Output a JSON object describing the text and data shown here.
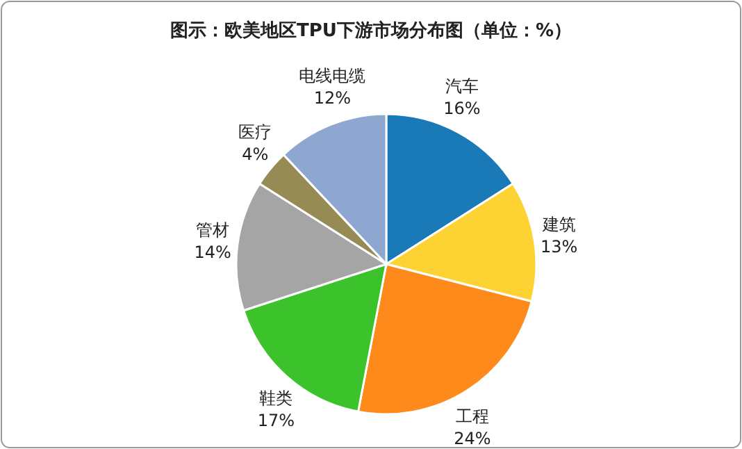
{
  "chart_data": {
    "type": "pie",
    "title": "图示：欧美地区TPU下游市场分布图（单位：%）",
    "categories": [
      "汽车",
      "建筑",
      "工程",
      "鞋类",
      "管材",
      "医疗",
      "电线电缆"
    ],
    "values": [
      16,
      13,
      24,
      17,
      14,
      4,
      12
    ],
    "value_labels": [
      "16%",
      "13%",
      "24%",
      "17%",
      "14%",
      "4%",
      "12%"
    ],
    "colors": [
      "#1a7ab8",
      "#fdd334",
      "#fd8a1a",
      "#3cc32c",
      "#a5a5a5",
      "#978b55",
      "#8ea7d0"
    ]
  }
}
